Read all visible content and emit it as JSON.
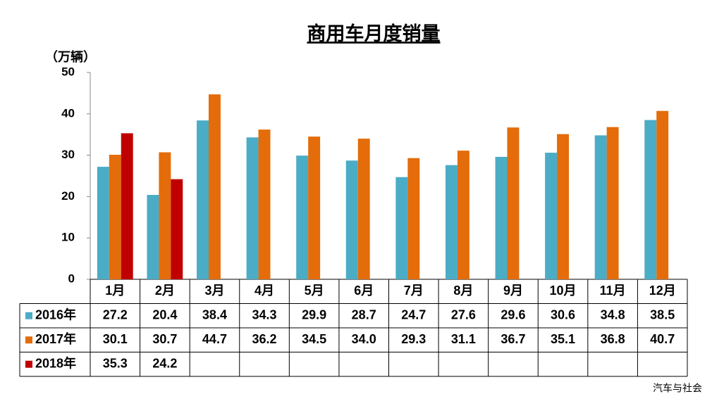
{
  "chart_data": {
    "type": "bar",
    "title": "商用车月度销量",
    "y_label": "（万辆）",
    "source": "汽车与社会",
    "categories": [
      "1月",
      "2月",
      "3月",
      "4月",
      "5月",
      "6月",
      "7月",
      "8月",
      "9月",
      "10月",
      "11月",
      "12月"
    ],
    "series": [
      {
        "name": "2016年",
        "color": "#4bacc6",
        "values": [
          27.2,
          20.4,
          38.4,
          34.3,
          29.9,
          28.7,
          24.7,
          27.6,
          29.6,
          30.6,
          34.8,
          38.5
        ],
        "value_labels": [
          "27.2",
          "20.4",
          "38.4",
          "34.3",
          "29.9",
          "28.7",
          "24.7",
          "27.6",
          "29.6",
          "30.6",
          "34.8",
          "38.5"
        ]
      },
      {
        "name": "2017年",
        "color": "#e46c0a",
        "values": [
          30.1,
          30.7,
          44.7,
          36.2,
          34.5,
          34.0,
          29.3,
          31.1,
          36.7,
          35.1,
          36.8,
          40.7
        ],
        "value_labels": [
          "30.1",
          "30.7",
          "44.7",
          "36.2",
          "34.5",
          "34.0",
          "29.3",
          "31.1",
          "36.7",
          "35.1",
          "36.8",
          "40.7"
        ]
      },
      {
        "name": "2018年",
        "color": "#c00000",
        "values": [
          35.3,
          24.2,
          null,
          null,
          null,
          null,
          null,
          null,
          null,
          null,
          null,
          null
        ],
        "value_labels": [
          "35.3",
          "24.2",
          null,
          null,
          null,
          null,
          null,
          null,
          null,
          null,
          null,
          null
        ]
      }
    ],
    "ylim": [
      0,
      50
    ],
    "yticks": [
      0,
      10,
      20,
      30,
      40,
      50
    ]
  }
}
